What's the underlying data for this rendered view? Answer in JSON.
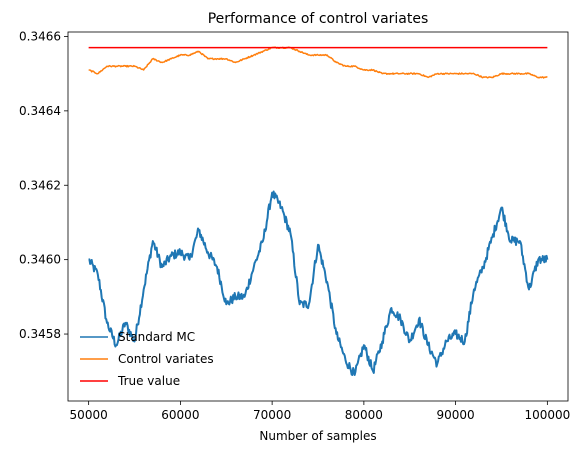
{
  "chart_data": {
    "type": "line",
    "title": "Performance of control variates",
    "xlabel": "Number of samples",
    "ylabel": "",
    "xlim": [
      47750,
      102250
    ],
    "ylim": [
      0.34562,
      0.346612
    ],
    "xticks": [
      50000,
      60000,
      70000,
      80000,
      90000,
      100000
    ],
    "xtick_labels": [
      "50000",
      "60000",
      "70000",
      "80000",
      "90000",
      "100000"
    ],
    "yticks": [
      0.3458,
      0.346,
      0.3462,
      0.3464,
      0.3466
    ],
    "ytick_labels": [
      "0.3458",
      "0.3460",
      "0.3462",
      "0.3464",
      "0.3466"
    ],
    "grid": false,
    "legend_position": "lower-left",
    "series": [
      {
        "name": "Standard MC",
        "color": "#1f77b4",
        "x": [
          50000,
          51000,
          52000,
          53000,
          54000,
          55000,
          56000,
          57000,
          58000,
          59000,
          60000,
          61000,
          62000,
          63000,
          64000,
          65000,
          66000,
          67000,
          68000,
          69000,
          70000,
          71000,
          72000,
          73000,
          74000,
          75000,
          76000,
          77000,
          78000,
          79000,
          80000,
          81000,
          82000,
          83000,
          84000,
          85000,
          86000,
          87000,
          88000,
          89000,
          90000,
          91000,
          92000,
          93000,
          94000,
          95000,
          96000,
          97000,
          98000,
          99000,
          100000
        ],
        "values": [
          0.346,
          0.34596,
          0.34583,
          0.34577,
          0.34583,
          0.34578,
          0.34592,
          0.34605,
          0.34598,
          0.34601,
          0.34602,
          0.346,
          0.34608,
          0.34602,
          0.34598,
          0.34588,
          0.3459,
          0.3459,
          0.34598,
          0.34605,
          0.34618,
          0.34614,
          0.34607,
          0.34588,
          0.34588,
          0.34604,
          0.34594,
          0.3458,
          0.34573,
          0.34569,
          0.34577,
          0.3457,
          0.34578,
          0.34587,
          0.34584,
          0.34578,
          0.34584,
          0.34577,
          0.34572,
          0.34578,
          0.3458,
          0.34578,
          0.34592,
          0.34598,
          0.34606,
          0.34614,
          0.34605,
          0.34605,
          0.34592,
          0.346,
          0.346
        ]
      },
      {
        "name": "Control variates",
        "color": "#ff7f0e",
        "x": [
          50000,
          51000,
          52000,
          53000,
          54000,
          55000,
          56000,
          57000,
          58000,
          59000,
          60000,
          61000,
          62000,
          63000,
          64000,
          65000,
          66000,
          67000,
          68000,
          69000,
          70000,
          71000,
          72000,
          73000,
          74000,
          75000,
          76000,
          77000,
          78000,
          79000,
          80000,
          81000,
          82000,
          83000,
          84000,
          85000,
          86000,
          87000,
          88000,
          89000,
          90000,
          91000,
          92000,
          93000,
          94000,
          95000,
          96000,
          97000,
          98000,
          99000,
          100000
        ],
        "values": [
          0.34651,
          0.3465,
          0.34652,
          0.34652,
          0.34652,
          0.34652,
          0.34651,
          0.34654,
          0.34653,
          0.34654,
          0.34655,
          0.34655,
          0.34656,
          0.34654,
          0.34654,
          0.34654,
          0.34653,
          0.34654,
          0.34655,
          0.34656,
          0.34657,
          0.34657,
          0.34657,
          0.34656,
          0.34655,
          0.34655,
          0.34655,
          0.34653,
          0.34652,
          0.34652,
          0.34651,
          0.34651,
          0.3465,
          0.3465,
          0.3465,
          0.3465,
          0.3465,
          0.34649,
          0.3465,
          0.3465,
          0.3465,
          0.3465,
          0.3465,
          0.34649,
          0.34649,
          0.3465,
          0.3465,
          0.3465,
          0.3465,
          0.34649,
          0.34649
        ]
      },
      {
        "name": "True value",
        "color": "#ff0000",
        "x": [
          50000,
          100000
        ],
        "values": [
          0.34657,
          0.34657
        ]
      }
    ]
  }
}
